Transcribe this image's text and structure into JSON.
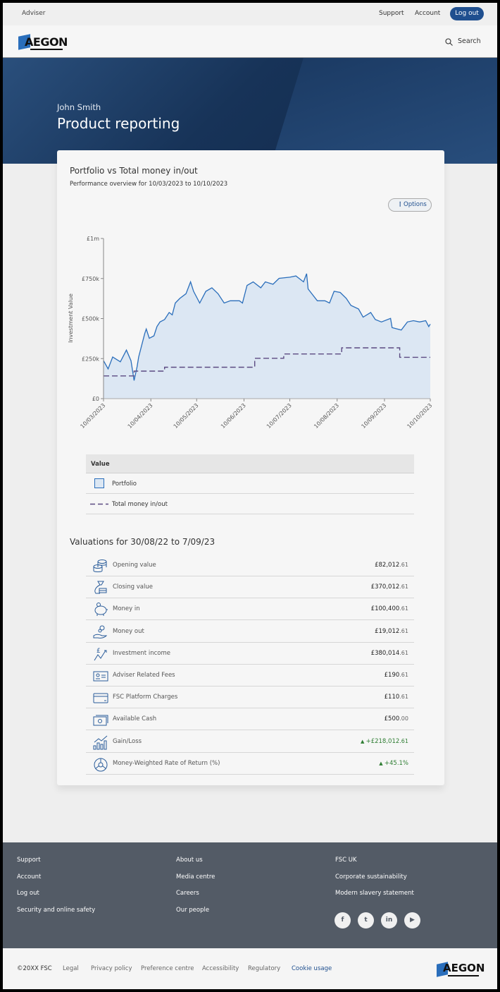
{
  "topbar": {
    "role": "Adviser",
    "links": [
      "Support",
      "Account"
    ],
    "logout": "Log out"
  },
  "header": {
    "logo": "AEGON",
    "search": "Search",
    "search_icon": "search-icon"
  },
  "hero": {
    "name": "John Smith",
    "title": "Product reporting"
  },
  "card": {
    "title": "Portfolio vs Total money in/out",
    "subtitle": "Performance overview for 10/03/2023 to 10/10/2023",
    "options": "Options"
  },
  "chart_data": {
    "type": "area",
    "ylabel": "Investment Value",
    "ylim": [
      0,
      1000000
    ],
    "yticks": [
      "£0",
      "£250k",
      "£500k",
      "£750k",
      "£1m"
    ],
    "xlim": [
      "2023-03-10",
      "2023-10-10"
    ],
    "xticks": [
      "10/03/2023",
      "10/04/2023",
      "10/05/2023",
      "10/06/2023",
      "10/07/2023",
      "10/08/2023",
      "10/09/2023",
      "10/10/2023"
    ],
    "colors": {
      "portfolio": "#2a6ebb",
      "portfolio_fill": "#dce7f3",
      "money": "#5b4a82"
    },
    "series": [
      {
        "name": "Portfolio",
        "style": "area",
        "points": [
          [
            "2023-03-10",
            237000
          ],
          [
            "2023-03-13",
            186000
          ],
          [
            "2023-03-16",
            260000
          ],
          [
            "2023-03-21",
            230000
          ],
          [
            "2023-03-25",
            303000
          ],
          [
            "2023-03-28",
            237000
          ],
          [
            "2023-03-30",
            113000
          ],
          [
            "2023-04-01",
            200000
          ],
          [
            "2023-04-02",
            260000
          ],
          [
            "2023-04-06",
            406000
          ],
          [
            "2023-04-07",
            435000
          ],
          [
            "2023-04-09",
            377000
          ],
          [
            "2023-04-12",
            392000
          ],
          [
            "2023-04-14",
            450000
          ],
          [
            "2023-04-16",
            479000
          ],
          [
            "2023-04-19",
            494000
          ],
          [
            "2023-04-22",
            538000
          ],
          [
            "2023-04-24",
            523000
          ],
          [
            "2023-04-26",
            597000
          ],
          [
            "2023-04-29",
            626000
          ],
          [
            "2023-05-03",
            655000
          ],
          [
            "2023-05-06",
            729000
          ],
          [
            "2023-05-08",
            670000
          ],
          [
            "2023-05-12",
            597000
          ],
          [
            "2023-05-16",
            670000
          ],
          [
            "2023-05-20",
            692000
          ],
          [
            "2023-05-24",
            655000
          ],
          [
            "2023-05-28",
            597000
          ],
          [
            "2023-06-01",
            611000
          ],
          [
            "2023-06-07",
            611000
          ],
          [
            "2023-06-09",
            597000
          ],
          [
            "2023-06-12",
            707000
          ],
          [
            "2023-06-16",
            729000
          ],
          [
            "2023-06-21",
            692000
          ],
          [
            "2023-06-24",
            729000
          ],
          [
            "2023-06-29",
            714000
          ],
          [
            "2023-07-03",
            751000
          ],
          [
            "2023-07-10",
            758000
          ],
          [
            "2023-07-14",
            766000
          ],
          [
            "2023-07-19",
            729000
          ],
          [
            "2023-07-21",
            780000
          ],
          [
            "2023-07-22",
            685000
          ],
          [
            "2023-07-25",
            648000
          ],
          [
            "2023-07-28",
            611000
          ],
          [
            "2023-08-02",
            611000
          ],
          [
            "2023-08-05",
            597000
          ],
          [
            "2023-08-08",
            670000
          ],
          [
            "2023-08-12",
            663000
          ],
          [
            "2023-08-16",
            626000
          ],
          [
            "2023-08-19",
            582000
          ],
          [
            "2023-08-24",
            560000
          ],
          [
            "2023-08-27",
            509000
          ],
          [
            "2023-09-01",
            538000
          ],
          [
            "2023-09-04",
            494000
          ],
          [
            "2023-09-08",
            479000
          ],
          [
            "2023-09-14",
            501000
          ],
          [
            "2023-09-15",
            443000
          ],
          [
            "2023-09-21",
            428000
          ],
          [
            "2023-09-25",
            479000
          ],
          [
            "2023-09-29",
            487000
          ],
          [
            "2023-10-03",
            479000
          ],
          [
            "2023-10-07",
            487000
          ],
          [
            "2023-10-09",
            450000
          ],
          [
            "2023-10-10",
            465000
          ]
        ]
      },
      {
        "name": "Total money in/out",
        "style": "dashed-step",
        "points": [
          [
            "2023-03-10",
            142000
          ],
          [
            "2023-03-30",
            172000
          ],
          [
            "2023-04-19",
            196000
          ],
          [
            "2023-06-17",
            252000
          ],
          [
            "2023-07-06",
            279000
          ],
          [
            "2023-08-13",
            317000
          ],
          [
            "2023-09-20",
            258000
          ],
          [
            "2023-10-10",
            258000
          ]
        ]
      }
    ]
  },
  "legend": {
    "header": "Value",
    "items": [
      "Portfolio",
      "Total money in/out"
    ]
  },
  "valuations": {
    "title": "Valuations for 30/08/22 to 7/09/23",
    "rows": [
      {
        "icon": "coins-icon",
        "label": "Opening value",
        "value": "£82,012",
        "pence": ".61"
      },
      {
        "icon": "money-bag-icon",
        "label": "Closing value",
        "value": "£370,012",
        "pence": ".61"
      },
      {
        "icon": "piggy-bank-icon",
        "label": "Money in",
        "value": "£100,400",
        "pence": ".61"
      },
      {
        "icon": "hand-coins-icon",
        "label": "Money out",
        "value": "£19,012",
        "pence": ".61"
      },
      {
        "icon": "pound-growth-icon",
        "label": "Investment income",
        "value": "£380,014",
        "pence": ".61"
      },
      {
        "icon": "id-card-icon",
        "label": "Adviser Related Fees",
        "value": "£190",
        "pence": ".61"
      },
      {
        "icon": "credit-card-icon",
        "label": "FSC Platform Charges",
        "value": "£110",
        "pence": ".61"
      },
      {
        "icon": "cash-icon",
        "label": "Available Cash",
        "value": "£500",
        "pence": ".00"
      },
      {
        "icon": "bar-chart-up-icon",
        "label": "Gain/Loss",
        "value": "+£218,012",
        "pence": ".61",
        "trend": "up"
      },
      {
        "icon": "pie-chart-icon",
        "label": "Money-Weighted Rate of Return (%)",
        "value": "+45.1%",
        "pence": "",
        "trend": "up"
      }
    ],
    "positive_color": "#2e7d32"
  },
  "footer": {
    "col1": [
      "Support",
      "Account",
      "Log out",
      "Security and online safety"
    ],
    "col2": [
      "About us",
      "Media centre",
      "Careers",
      "Our people"
    ],
    "col3": [
      "FSC UK",
      "Corporate sustainability",
      "Modern slavery statement"
    ],
    "social": [
      "facebook-icon",
      "twitter-icon",
      "linkedin-icon",
      "youtube-icon"
    ]
  },
  "bottom": {
    "copyright": "©20XX FSC",
    "links": [
      "Legal",
      "Privacy policy",
      "Preference centre",
      "Accessibility",
      "Regulatory",
      "Cookie usage"
    ],
    "logo": "AEGON"
  }
}
